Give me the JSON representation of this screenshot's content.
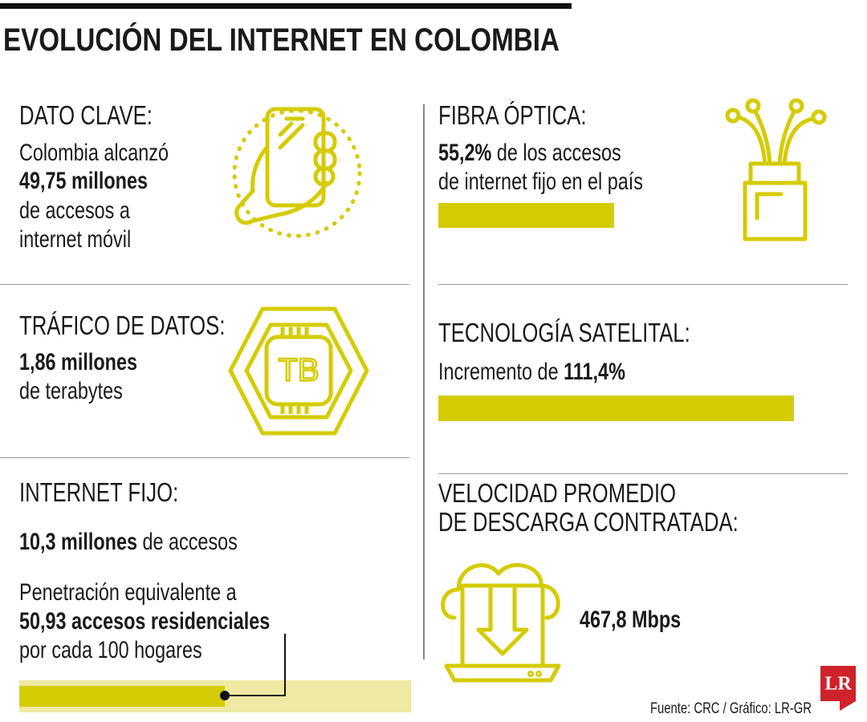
{
  "header": {
    "title": "EVOLUCIÓN DEL INTERNET EN COLOMBIA"
  },
  "sections": {
    "dato_clave": {
      "heading": "DATO CLAVE:",
      "lines": [
        "Colombia alcanzó",
        "49,75 millones",
        "de accesos a",
        "internet móvil"
      ]
    },
    "fibra_optica": {
      "heading": "FIBRA ÓPTICA:",
      "highlight": "55,2%",
      "line1": "de los accesos",
      "line2": "de internet fijo en el país"
    },
    "trafico": {
      "heading": "TRÁFICO DE DATOS:",
      "highlight": "1,86 millones",
      "line": "de terabytes",
      "icon_label": "TB"
    },
    "satelital": {
      "heading": "TECNOLOGÍA SATELITAL:",
      "text": "Incremento de",
      "highlight": "111,4%"
    },
    "internet_fijo": {
      "heading": "INTERNET FIJO:",
      "highlight": "10,3 millones",
      "text": "de accesos",
      "penetration_intro": "Penetración equivalente a",
      "penetration_highlight": "50,93 accesos residenciales",
      "penetration_end": "por cada 100 hogares"
    },
    "velocidad": {
      "heading_lines": [
        "VELOCIDAD PROMEDIO",
        "DE DESCARGA CONTRATADA:"
      ],
      "value": "467,8 Mbps"
    }
  },
  "footer": {
    "source": "Fuente: CRC / Gráfico: LR-GR",
    "logo": "LR"
  }
}
